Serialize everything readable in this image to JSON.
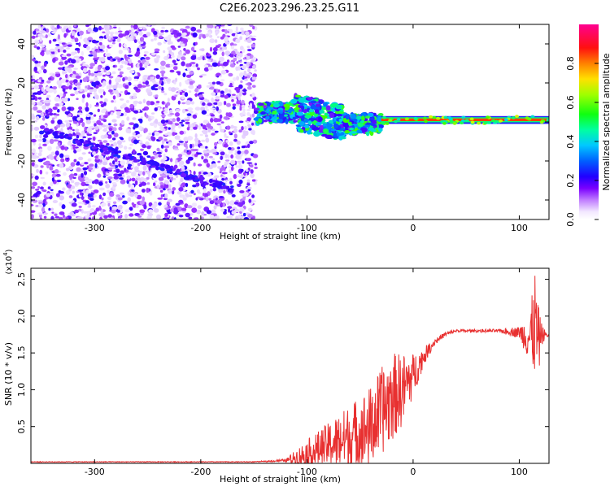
{
  "title": "C2E6.2023.296.23.25.G11",
  "chart_data": [
    {
      "type": "heatmap",
      "title": "C2E6.2023.296.23.25.G11",
      "xlabel": "Height of straight line (km)",
      "ylabel": "Frequency (Hz)",
      "xlim": [
        -360,
        128
      ],
      "ylim": [
        -50,
        50
      ],
      "x_ticks": [
        -300,
        -200,
        -100,
        0,
        100
      ],
      "y_ticks": [
        -40,
        -20,
        0,
        20,
        40
      ],
      "colorbar": {
        "label": "Normalized spectral amplitude",
        "range": [
          0,
          1
        ],
        "ticks": [
          0.0,
          0.2,
          0.4,
          0.6,
          0.8
        ],
        "tick_labels": [
          "0.0",
          "0.2",
          "0.4",
          "0.6",
          "0.8"
        ],
        "colormap": [
          "#ffffff",
          "#e0c8ff",
          "#9b30ff",
          "#3300ff",
          "#0066ff",
          "#00c8ff",
          "#00ff80",
          "#40ff00",
          "#c8ff00",
          "#ffd000",
          "#ff3000",
          "#ff0080"
        ]
      },
      "regions": [
        {
          "x": [
            -360,
            -148
          ],
          "freq": [
            -50,
            50
          ],
          "level": 0.15,
          "description": "broadband noise"
        },
        {
          "x": [
            -148,
            -30
          ],
          "freq": [
            -6,
            12
          ],
          "level": 0.5
        },
        {
          "x": [
            -30,
            128
          ],
          "freq": [
            0,
            2
          ],
          "level": 0.9
        }
      ],
      "grid": false
    },
    {
      "type": "line",
      "xlabel": "Height of straight line (km)",
      "ylabel": "SNR (10 * v/v)",
      "y_scale_label": "(x10",
      "y_scale_exp": "4",
      "xlim": [
        -360,
        128
      ],
      "ylim": [
        0,
        2.65
      ],
      "x_ticks": [
        -300,
        -200,
        -100,
        0,
        100
      ],
      "y_ticks": [
        0.5,
        1.0,
        1.5,
        2.0,
        2.5
      ],
      "y_tick_labels": [
        "0.5",
        "1.0",
        "1.5",
        "2.0",
        "2.5"
      ],
      "series": [
        {
          "color": "#e83030",
          "x": [
            -360,
            -300,
            -200,
            -150,
            -120,
            -100,
            -80,
            -60,
            -40,
            -30,
            -20,
            -10,
            0,
            10,
            20,
            30,
            40,
            60,
            80,
            100,
            110,
            115,
            118,
            120,
            125,
            128
          ],
          "y": [
            0.02,
            0.02,
            0.02,
            0.02,
            0.04,
            0.12,
            0.25,
            0.35,
            0.5,
            0.7,
            0.9,
            1.0,
            1.2,
            1.45,
            1.65,
            1.75,
            1.8,
            1.8,
            1.8,
            1.78,
            1.7,
            1.9,
            1.6,
            1.75,
            1.75,
            1.73
          ],
          "noise_amplitude": [
            0,
            0,
            0,
            0,
            0.02,
            0.2,
            0.3,
            0.45,
            0.55,
            0.6,
            0.6,
            0.5,
            0.3,
            0.12,
            0.05,
            0.03,
            0.02,
            0.02,
            0.02,
            0.08,
            0.35,
            0.75,
            0.55,
            0.2,
            0.03,
            0.03
          ]
        }
      ],
      "grid": false
    }
  ]
}
